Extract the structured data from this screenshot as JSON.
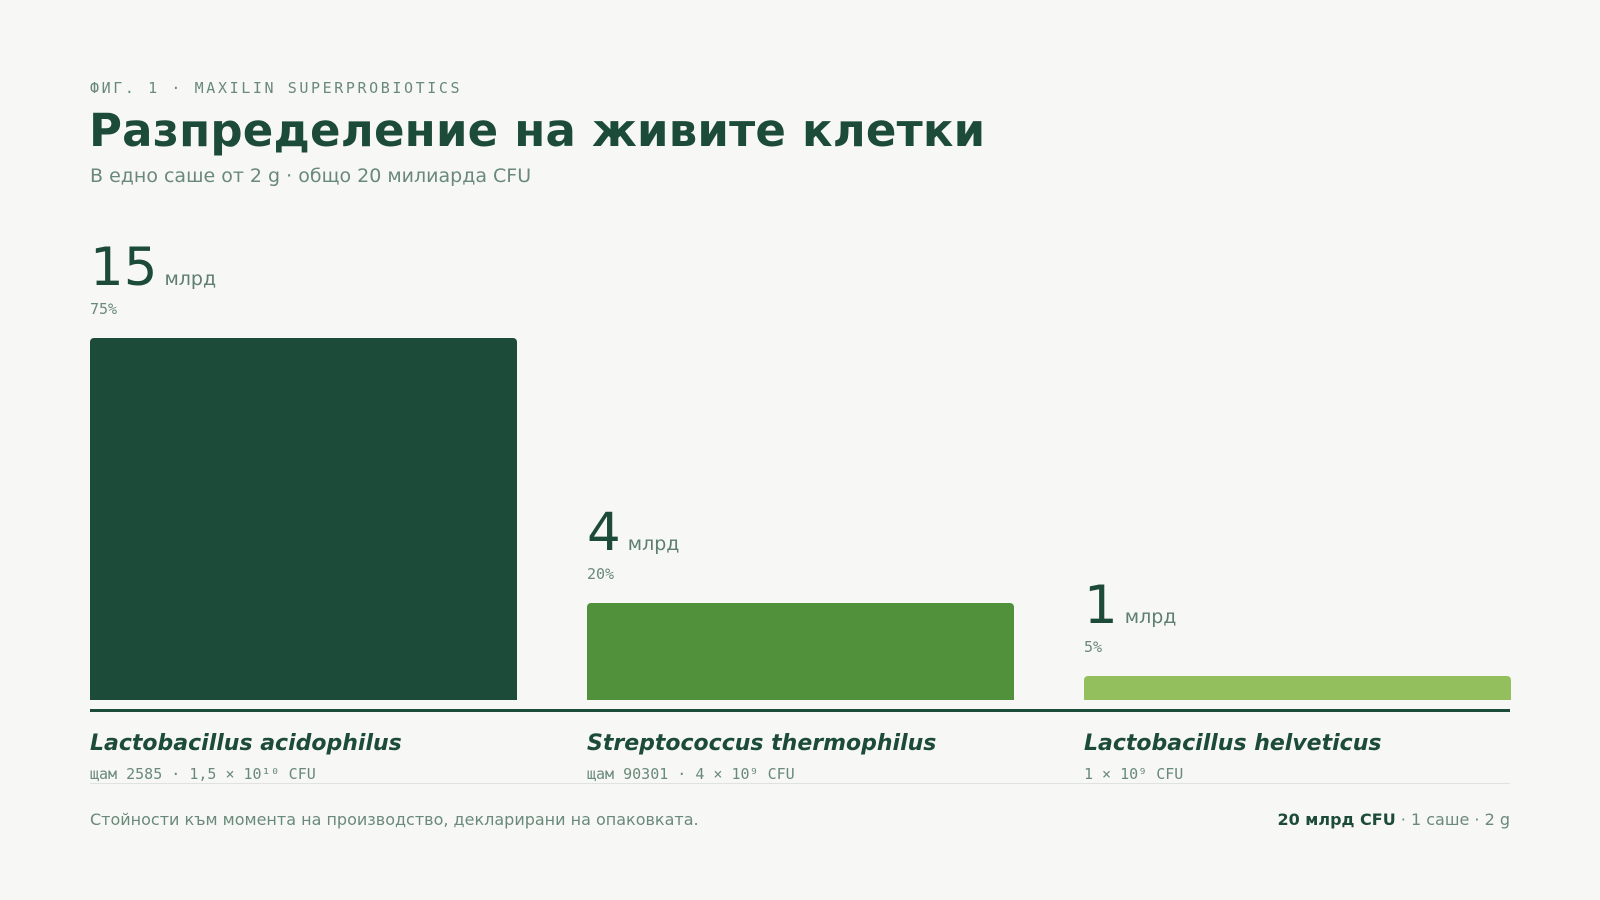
{
  "header": {
    "eyebrow": "ФИГ. 1 · MAXILIN SUPERPROBIOTICS",
    "title": "Разпределение на живите клетки",
    "subtitle": "В едно саше от 2 g · общо 20 милиарда CFU"
  },
  "chart_data": {
    "type": "bar",
    "title": "Разпределение на живите клетки",
    "subtitle": "В едно саше от 2 g · общо 20 милиарда CFU",
    "categories": [
      "Lactobacillus acidophilus",
      "Streptococcus thermophilus",
      "Lactobacillus helveticus"
    ],
    "values": [
      15,
      4,
      1
    ],
    "value_labels": [
      "15",
      "4",
      "1"
    ],
    "unit": "млрд",
    "percents": [
      "75%",
      "20%",
      "5%"
    ],
    "details": [
      "щам 2585 · 1,5 × 10¹⁰ CFU",
      "щам 90301 · 4 × 10⁹ CFU",
      "1 × 10⁹ CFU"
    ],
    "colors": [
      "#1c4b3a",
      "#51913b",
      "#93c05d"
    ],
    "ylim": [
      0,
      15
    ],
    "grid": false
  },
  "footer": {
    "note": "Стойности към момента на производство, декларирани на опаковката.",
    "total_strong": "20 млрд CFU",
    "total_rest": " · 1 саше · 2 g"
  }
}
